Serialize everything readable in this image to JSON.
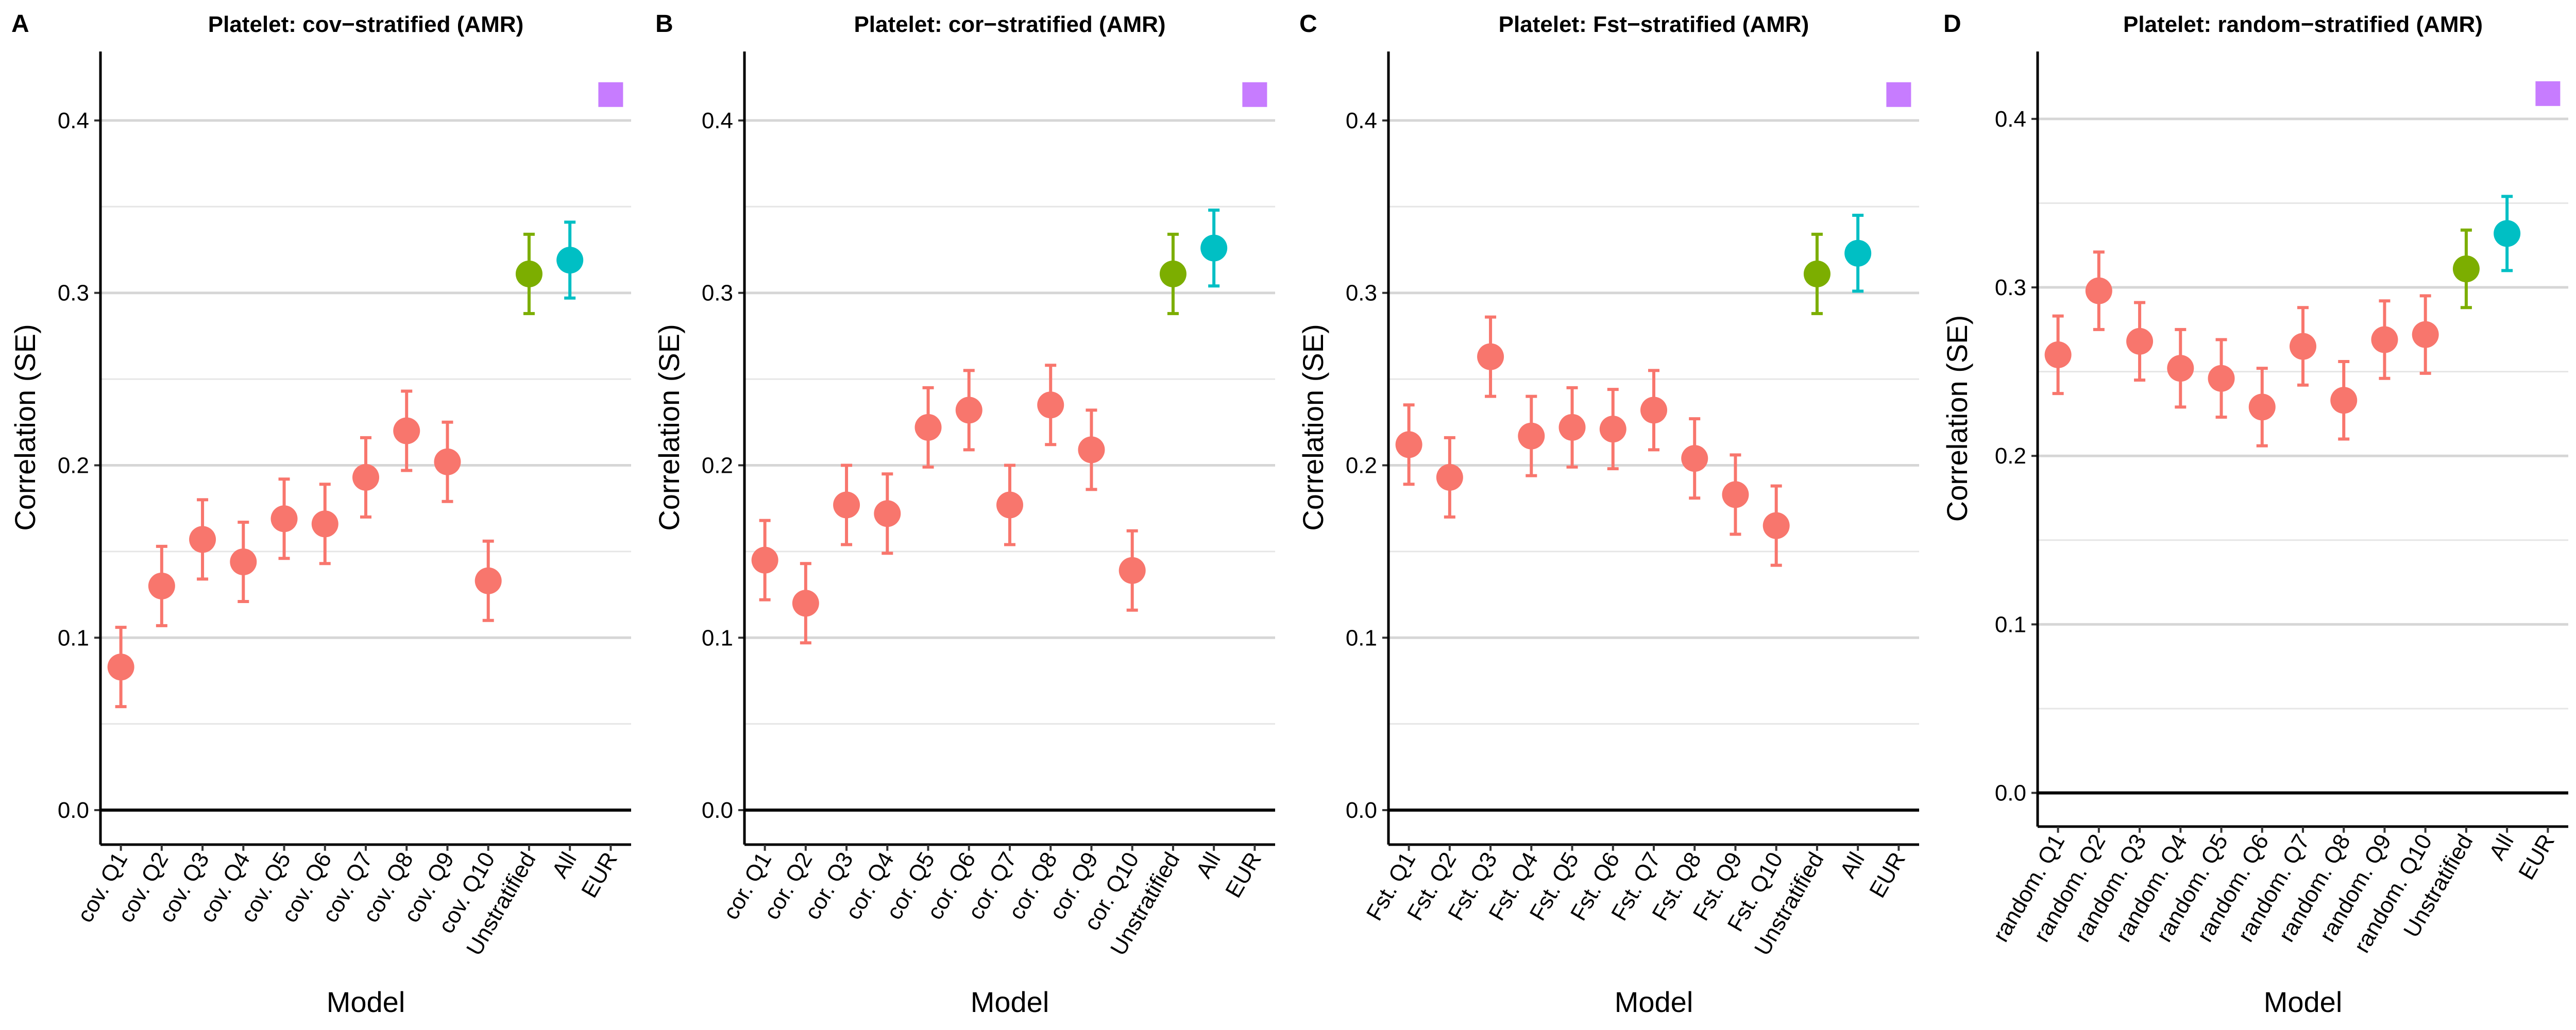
{
  "colors": {
    "stratified": "#F8766D",
    "unstratified": "#7CAE00",
    "all": "#00BFC4",
    "eur": "#C77CFF"
  },
  "chart_data": [
    {
      "type": "scatter",
      "panel_label": "A",
      "title": "Platelet: cov−stratified (AMR)",
      "xlabel": "Model",
      "ylabel": "Correlation (SE)",
      "ylim": [
        -0.02,
        0.44
      ],
      "yticks": [
        "0.0",
        "0.1",
        "0.2",
        "0.3",
        "0.4"
      ],
      "grid": true,
      "categories": [
        "cov. Q1",
        "cov. Q2",
        "cov. Q3",
        "cov. Q4",
        "cov. Q5",
        "cov. Q6",
        "cov. Q7",
        "cov. Q8",
        "cov. Q9",
        "cov. Q10",
        "Unstratified",
        "All",
        "EUR"
      ],
      "values": [
        0.083,
        0.13,
        0.157,
        0.144,
        0.169,
        0.166,
        0.193,
        0.22,
        0.202,
        0.133,
        0.311,
        0.319,
        0.415
      ],
      "se": [
        0.023,
        0.023,
        0.023,
        0.023,
        0.023,
        0.023,
        0.023,
        0.023,
        0.023,
        0.023,
        0.023,
        0.022,
        null
      ],
      "groups": [
        "stratified",
        "stratified",
        "stratified",
        "stratified",
        "stratified",
        "stratified",
        "stratified",
        "stratified",
        "stratified",
        "stratified",
        "unstratified",
        "all",
        "eur"
      ]
    },
    {
      "type": "scatter",
      "panel_label": "B",
      "title": "Platelet: cor−stratified (AMR)",
      "xlabel": "Model",
      "ylabel": "Correlation (SE)",
      "ylim": [
        -0.02,
        0.44
      ],
      "yticks": [
        "0.0",
        "0.1",
        "0.2",
        "0.3",
        "0.4"
      ],
      "grid": true,
      "categories": [
        "cor. Q1",
        "cor. Q2",
        "cor. Q3",
        "cor. Q4",
        "cor. Q5",
        "cor. Q6",
        "cor. Q7",
        "cor. Q8",
        "cor. Q9",
        "cor. Q10",
        "Unstratified",
        "All",
        "EUR"
      ],
      "values": [
        0.145,
        0.12,
        0.177,
        0.172,
        0.222,
        0.232,
        0.177,
        0.235,
        0.209,
        0.139,
        0.311,
        0.326,
        0.415
      ],
      "se": [
        0.023,
        0.023,
        0.023,
        0.023,
        0.023,
        0.023,
        0.023,
        0.023,
        0.023,
        0.023,
        0.023,
        0.022,
        null
      ],
      "groups": [
        "stratified",
        "stratified",
        "stratified",
        "stratified",
        "stratified",
        "stratified",
        "stratified",
        "stratified",
        "stratified",
        "stratified",
        "unstratified",
        "all",
        "eur"
      ]
    },
    {
      "type": "scatter",
      "panel_label": "C",
      "title": "Platelet: Fst−stratified (AMR)",
      "xlabel": "Model",
      "ylabel": "Correlation (SE)",
      "ylim": [
        -0.02,
        0.44
      ],
      "yticks": [
        "0.0",
        "0.1",
        "0.2",
        "0.3",
        "0.4"
      ],
      "grid": true,
      "categories": [
        "Fst. Q1",
        "Fst. Q2",
        "Fst. Q3",
        "Fst. Q4",
        "Fst. Q5",
        "Fst. Q6",
        "Fst. Q7",
        "Fst. Q8",
        "Fst. Q9",
        "Fst. Q10",
        "Unstratified",
        "All",
        "EUR"
      ],
      "values": [
        0.212,
        0.193,
        0.263,
        0.217,
        0.222,
        0.221,
        0.232,
        0.204,
        0.183,
        0.165,
        0.311,
        0.323,
        0.415
      ],
      "se": [
        0.023,
        0.023,
        0.023,
        0.023,
        0.023,
        0.023,
        0.023,
        0.023,
        0.023,
        0.023,
        0.023,
        0.022,
        null
      ],
      "groups": [
        "stratified",
        "stratified",
        "stratified",
        "stratified",
        "stratified",
        "stratified",
        "stratified",
        "stratified",
        "stratified",
        "stratified",
        "unstratified",
        "all",
        "eur"
      ]
    },
    {
      "type": "scatter",
      "panel_label": "D",
      "title": "Platelet: random−stratified (AMR)",
      "xlabel": "Model",
      "ylabel": "Correlation (SE)",
      "ylim": [
        -0.02,
        0.44
      ],
      "yticks": [
        "0.0",
        "0.1",
        "0.2",
        "0.3",
        "0.4"
      ],
      "grid": true,
      "categories": [
        "random. Q1",
        "random. Q2",
        "random. Q3",
        "random. Q4",
        "random. Q5",
        "random. Q6",
        "random. Q7",
        "random. Q8",
        "random. Q9",
        "random. Q10",
        "Unstratified",
        "All",
        "EUR"
      ],
      "values": [
        0.26,
        0.298,
        0.268,
        0.252,
        0.246,
        0.229,
        0.265,
        0.233,
        0.269,
        0.272,
        0.311,
        0.332,
        0.415
      ],
      "se": [
        0.023,
        0.023,
        0.023,
        0.023,
        0.023,
        0.023,
        0.023,
        0.023,
        0.023,
        0.023,
        0.023,
        0.022,
        null
      ],
      "groups": [
        "stratified",
        "stratified",
        "stratified",
        "stratified",
        "stratified",
        "stratified",
        "stratified",
        "stratified",
        "stratified",
        "stratified",
        "unstratified",
        "all",
        "eur"
      ]
    }
  ]
}
